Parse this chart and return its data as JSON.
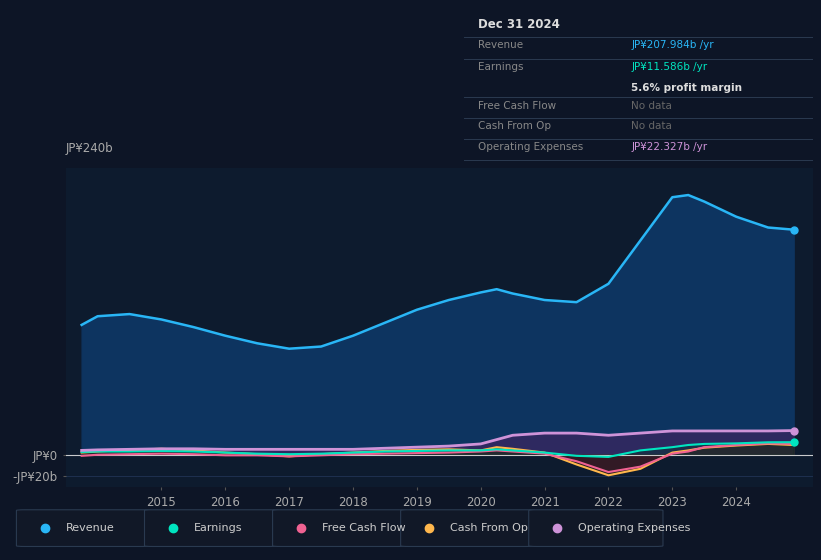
{
  "bg_color": "#0d1526",
  "chart_bg": "#0d1b2e",
  "years": [
    2013.75,
    2014.0,
    2014.5,
    2015.0,
    2015.5,
    2016.0,
    2016.5,
    2017.0,
    2017.5,
    2018.0,
    2018.5,
    2019.0,
    2019.5,
    2020.0,
    2020.25,
    2020.5,
    2021.0,
    2021.5,
    2022.0,
    2022.5,
    2023.0,
    2023.25,
    2023.5,
    2024.0,
    2024.5,
    2024.9
  ],
  "revenue": [
    120,
    128,
    130,
    125,
    118,
    110,
    103,
    98,
    100,
    110,
    122,
    134,
    143,
    150,
    153,
    149,
    143,
    141,
    158,
    198,
    238,
    240,
    234,
    220,
    210,
    208
  ],
  "earnings": [
    2.5,
    3,
    3,
    3.5,
    3,
    2,
    1,
    0.5,
    1,
    2,
    3,
    3.5,
    4,
    4,
    5,
    4,
    2,
    -1,
    -2,
    4,
    7,
    9,
    10,
    10.5,
    11.5,
    11.586
  ],
  "free_cash_flow": [
    -1,
    0,
    0.5,
    1,
    0.5,
    -0.5,
    -0.5,
    -1.5,
    -0.5,
    0.5,
    1,
    1.5,
    2,
    3,
    4,
    3,
    1,
    -6,
    -16,
    -11,
    1,
    3,
    7,
    9,
    10.5,
    10
  ],
  "cash_from_op": [
    2,
    3,
    4.5,
    5.5,
    4,
    2,
    0.5,
    -1.5,
    0.5,
    2,
    3.5,
    4.5,
    5,
    4,
    7,
    5.5,
    2,
    -9,
    -19,
    -13,
    2,
    4,
    6.5,
    8.5,
    10,
    9
  ],
  "operating_expenses": [
    4,
    4.5,
    5,
    5.5,
    5.5,
    5,
    5,
    5,
    5,
    5,
    6,
    7,
    8,
    10,
    14,
    18,
    20,
    20,
    18,
    20,
    22,
    22,
    22,
    22,
    22,
    22.327
  ],
  "ylim": [
    -30,
    265
  ],
  "yticks": [
    -20,
    0,
    240
  ],
  "ytick_labels": [
    "-JP¥20b",
    "JP¥0",
    "JP¥240b"
  ],
  "xtick_years": [
    2015,
    2016,
    2017,
    2018,
    2019,
    2020,
    2021,
    2022,
    2023,
    2024
  ],
  "revenue_color": "#29b6f6",
  "earnings_color": "#00e5c0",
  "fcf_color": "#f06292",
  "cashop_color": "#ffb74d",
  "opex_color": "#ce93d8",
  "revenue_fill": "#0d3460",
  "info_box": {
    "title": "Dec 31 2024",
    "revenue_label": "Revenue",
    "revenue_val": "JP¥207.984b /yr",
    "earnings_label": "Earnings",
    "earnings_val": "JP¥11.586b /yr",
    "margin_val": "5.6% profit margin",
    "fcf_label": "Free Cash Flow",
    "fcf_val": "No data",
    "cashop_label": "Cash From Op",
    "cashop_val": "No data",
    "opex_label": "Operating Expenses",
    "opex_val": "JP¥22.327b /yr"
  },
  "legend_items": [
    {
      "label": "Revenue",
      "color": "#29b6f6"
    },
    {
      "label": "Earnings",
      "color": "#00e5c0"
    },
    {
      "label": "Free Cash Flow",
      "color": "#f06292"
    },
    {
      "label": "Cash From Op",
      "color": "#ffb74d"
    },
    {
      "label": "Operating Expenses",
      "color": "#ce93d8"
    }
  ]
}
